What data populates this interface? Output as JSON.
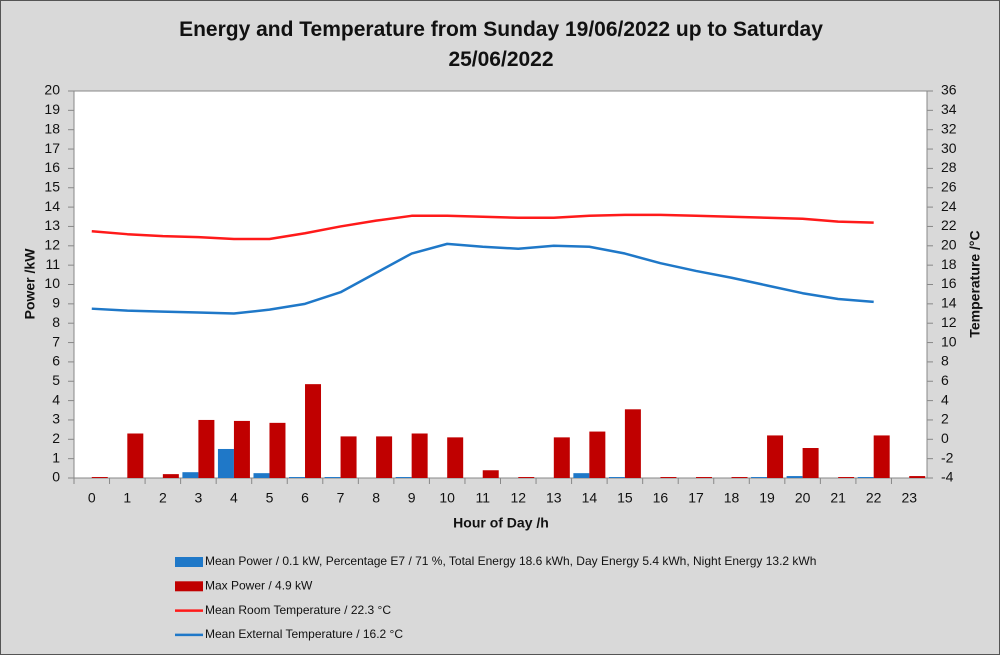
{
  "chart_data": {
    "type": "bar_line",
    "title": "Energy and Temperature from Sunday 19/06/2022 up to Saturday 25/06/2022",
    "xlabel": "Hour of Day /h",
    "ylabel": "Power /kW",
    "y2label": "Temperature /°C",
    "categories": [
      "0",
      "1",
      "2",
      "3",
      "4",
      "5",
      "6",
      "7",
      "8",
      "9",
      "10",
      "11",
      "12",
      "13",
      "14",
      "15",
      "16",
      "17",
      "18",
      "19",
      "20",
      "21",
      "22",
      "23"
    ],
    "ylim": [
      0,
      20
    ],
    "yticks": [
      0,
      1,
      2,
      3,
      4,
      5,
      6,
      7,
      8,
      9,
      10,
      11,
      12,
      13,
      14,
      15,
      16,
      17,
      18,
      19,
      20
    ],
    "y2lim": [
      -4,
      36
    ],
    "y2ticks": [
      -4,
      -2,
      0,
      2,
      4,
      6,
      8,
      10,
      12,
      14,
      16,
      18,
      20,
      22,
      24,
      26,
      28,
      30,
      32,
      34,
      36
    ],
    "grid": false,
    "series": [
      {
        "name": "Mean Power / 0.1 kW, Percentage E7 / 71 %, Total Energy 18.6 kWh, Day Energy 5.4 kWh, Night Energy 13.2 kWh",
        "type": "bar",
        "color": "#1f78c8",
        "values": [
          0,
          0,
          0,
          0.3,
          1.5,
          0.25,
          0.05,
          0.05,
          0,
          0.05,
          0,
          0,
          0,
          0,
          0.25,
          0.05,
          0,
          0,
          0,
          0.05,
          0.1,
          0,
          0.05,
          0
        ]
      },
      {
        "name": "Max Power / 4.9 kW",
        "type": "bar",
        "color": "#c00000",
        "values": [
          0.05,
          2.3,
          0.2,
          3.0,
          2.95,
          2.85,
          4.85,
          2.15,
          2.15,
          2.3,
          2.1,
          0.4,
          0.05,
          2.1,
          2.4,
          3.55,
          0.05,
          0.05,
          0.05,
          2.2,
          1.55,
          0.05,
          2.2,
          0.1
        ]
      },
      {
        "name": "Mean Room Temperature / 22.3 °C",
        "type": "line",
        "axis": "y2",
        "color": "#ff1a1a",
        "values": [
          21.5,
          21.2,
          21.0,
          20.9,
          20.7,
          20.7,
          21.3,
          22.0,
          22.6,
          23.1,
          23.1,
          23.0,
          22.9,
          22.9,
          23.1,
          23.2,
          23.2,
          23.1,
          23.0,
          22.9,
          22.8,
          22.5,
          22.4,
          null
        ]
      },
      {
        "name": "Mean External Temperature / 16.2 °C",
        "type": "line",
        "axis": "y2",
        "color": "#1f78c8",
        "values": [
          13.5,
          13.3,
          13.2,
          13.1,
          13.0,
          13.4,
          14.0,
          15.2,
          17.2,
          19.2,
          20.2,
          19.9,
          19.7,
          20.0,
          19.9,
          19.2,
          18.2,
          17.4,
          16.7,
          15.9,
          15.1,
          14.5,
          14.2,
          null
        ]
      }
    ]
  }
}
